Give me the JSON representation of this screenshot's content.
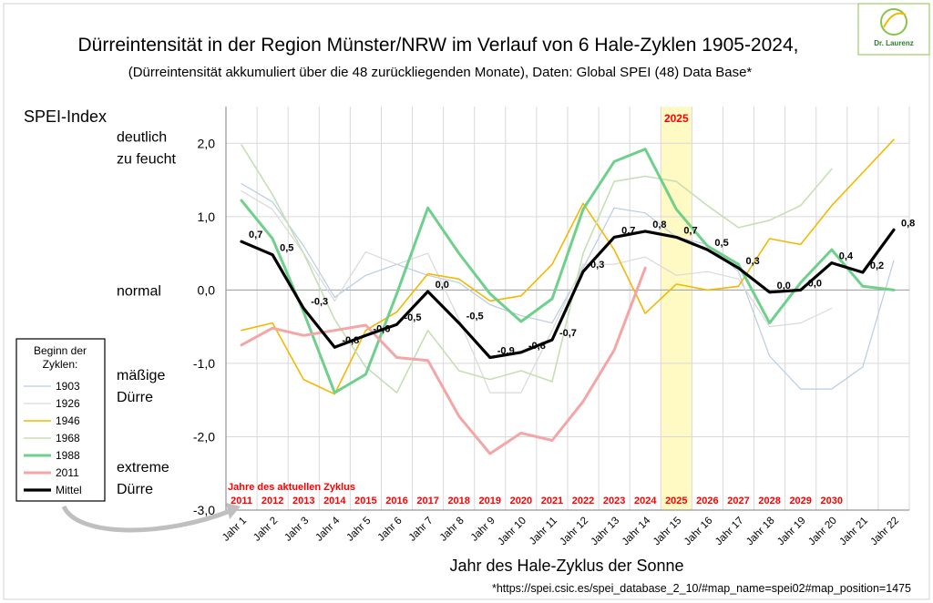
{
  "logo": {
    "text": "Dr. Laurenz"
  },
  "chart_data": {
    "type": "line",
    "title": "Dürreintensität in der Region Münster/NRW im Verlauf von  6  Hale-Zyklen  1905-2024,",
    "subtitle": "(Dürreintensität akkumuliert über die 48 zurückliegenden Monate), Daten: Global SPEI (48) Data Base*",
    "ylabel": "SPEI-Index",
    "xlabel": "Jahr des Hale-Zyklus der Sonne",
    "footnote": "*https://spei.csic.es/spei_database_2_10/#map_name=spei02#map_position=1475",
    "ylim": [
      -3.0,
      2.5
    ],
    "yticks": [
      2.0,
      1.0,
      0.0,
      -1.0,
      -2.0,
      -3.0
    ],
    "ytick_labels": [
      "2,0",
      "1,0",
      "0,0",
      "-1,0",
      "-2,0",
      "-3,0"
    ],
    "y_annotations": [
      {
        "lines": [
          "deutlich",
          "zu feucht"
        ],
        "y": 1.95
      },
      {
        "lines": [
          "normal"
        ],
        "y": 0.0
      },
      {
        "lines": [
          "mäßige",
          "Dürre"
        ],
        "y": -1.3
      },
      {
        "lines": [
          "extreme",
          "Dürre"
        ],
        "y": -2.55
      }
    ],
    "categories": [
      "Jahr 1",
      "Jahr 2",
      "Jahr 3",
      "Jahr 4",
      "Jahr 5",
      "Jahr 6",
      "Jahr 7",
      "Jahr 8",
      "Jahr 9",
      "Jahr 10",
      "Jahr 11",
      "Jahr 12",
      "Jahr 13",
      "Jahr 14",
      "Jahr 15",
      "Jahr 16",
      "Jahr 17",
      "Jahr 18",
      "Jahr 19",
      "Jahr 20",
      "Jahr 21",
      "Jahr 22"
    ],
    "current_cycle_label": "Jahre des aktuellen Zyklus",
    "current_cycle_years": [
      "2011",
      "2012",
      "2013",
      "2014",
      "2015",
      "2016",
      "2017",
      "2018",
      "2019",
      "2020",
      "2021",
      "2022",
      "2023",
      "2024",
      "2025",
      "2026",
      "2027",
      "2028",
      "2029",
      "2030"
    ],
    "highlight": {
      "index": 14,
      "label": "2025",
      "color": "#fff9c4"
    },
    "grid": true,
    "legend": {
      "title_lines": [
        "Beginn der",
        "Zyklen:"
      ],
      "placement": "left"
    },
    "series": [
      {
        "name": "1903",
        "color": "#b8cce4",
        "width": 1.2,
        "values": [
          1.45,
          1.2,
          0.6,
          -0.1,
          0.2,
          0.35,
          0.2,
          0.1,
          -0.2,
          -0.35,
          -0.45,
          0.3,
          1.12,
          1.05,
          0.72,
          0.62,
          0.25,
          -0.9,
          -1.35,
          -1.35,
          -1.05,
          0.4
        ]
      },
      {
        "name": "1926",
        "color": "#d9d9d9",
        "width": 1.2,
        "values": [
          1.35,
          1.1,
          0.5,
          -0.15,
          0.52,
          0.35,
          0.5,
          -0.4,
          -1.4,
          -1.4,
          -0.55,
          0.35,
          0.35,
          0.45,
          0.2,
          0.25,
          0.15,
          -0.5,
          -0.45,
          -0.25,
          null,
          null
        ]
      },
      {
        "name": "1946",
        "color": "#f4b800",
        "width": 1.6,
        "values": [
          -0.55,
          -0.45,
          -1.22,
          -1.42,
          -0.55,
          -0.3,
          0.22,
          0.15,
          -0.15,
          -0.08,
          0.35,
          1.18,
          0.55,
          -0.32,
          0.08,
          0.0,
          0.05,
          0.7,
          0.62,
          1.15,
          1.6,
          2.05
        ]
      },
      {
        "name": "1968",
        "color": "#c5e0b4",
        "width": 1.6,
        "values": [
          1.98,
          1.3,
          0.5,
          -0.4,
          -1.05,
          -1.4,
          -0.55,
          -1.1,
          -1.22,
          -1.1,
          -1.25,
          0.5,
          1.48,
          1.55,
          1.48,
          1.15,
          0.85,
          0.95,
          1.15,
          1.65,
          null,
          null
        ]
      },
      {
        "name": "1988",
        "color": "#6fd08c",
        "width": 3,
        "values": [
          1.22,
          0.7,
          -0.3,
          -1.4,
          -1.15,
          -0.05,
          1.12,
          0.5,
          -0.05,
          -0.43,
          -0.12,
          1.1,
          1.75,
          1.92,
          1.1,
          0.6,
          0.35,
          -0.45,
          0.1,
          0.55,
          0.05,
          0.0
        ]
      },
      {
        "name": "2011",
        "color": "#f4a5a5",
        "width": 3,
        "values": [
          -0.75,
          -0.52,
          -0.62,
          -0.55,
          -0.48,
          -0.92,
          -0.96,
          -1.72,
          -2.23,
          -1.95,
          -2.05,
          -1.52,
          -0.82,
          0.3,
          null,
          null,
          null,
          null,
          null,
          null,
          null,
          null
        ]
      },
      {
        "name": "Mittel",
        "color": "#000000",
        "width": 3.2,
        "values": [
          0.66,
          0.48,
          -0.25,
          -0.78,
          -0.62,
          -0.47,
          -0.02,
          -0.45,
          -0.92,
          -0.85,
          -0.68,
          0.25,
          0.72,
          0.8,
          0.72,
          0.55,
          0.3,
          -0.03,
          0.0,
          0.37,
          0.24,
          0.82
        ]
      }
    ],
    "mean_labels": [
      "0,7",
      "0,5",
      "-0,3",
      "-0,8",
      "-0,6",
      "-0,5",
      "0,0",
      "-0,5",
      "-0,9",
      "-0,8",
      "-0,7",
      "0,3",
      "0,7",
      "0,8",
      "0,7",
      "0,5",
      "0,3",
      "0,0",
      "0,0",
      "0,4",
      "0,2",
      "0,8"
    ]
  }
}
